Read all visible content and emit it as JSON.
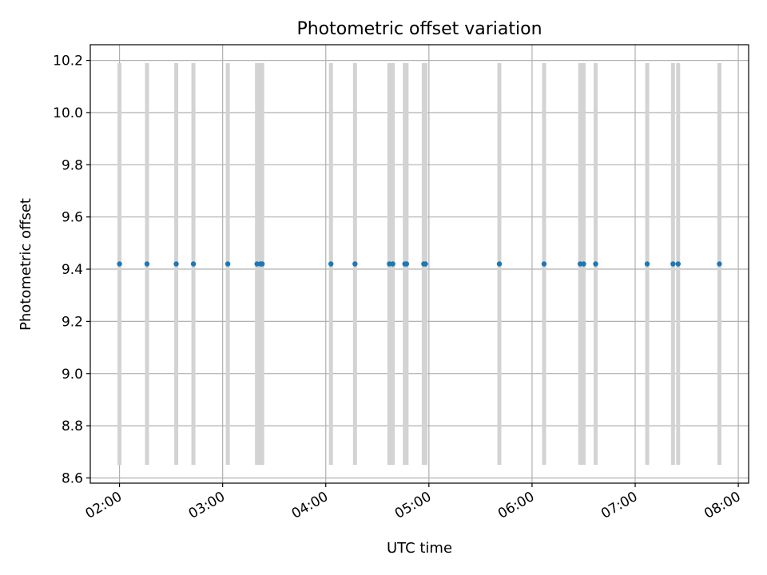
{
  "chart_data": {
    "type": "scatter",
    "title": "Photometric offset variation",
    "xlabel": "UTC time",
    "ylabel": "Photometric offset",
    "x_tick_labels": [
      "02:00",
      "03:00",
      "04:00",
      "05:00",
      "06:00",
      "07:00",
      "08:00"
    ],
    "y_tick_labels": [
      "8.6",
      "8.8",
      "9.0",
      "9.2",
      "9.4",
      "9.6",
      "9.8",
      "10.0",
      "10.2"
    ],
    "xlim": [
      "01:43",
      "08:06"
    ],
    "ylim": [
      8.58,
      10.26
    ],
    "grid": true,
    "error_bars": {
      "color": "#d3d3d3",
      "lower": 8.65,
      "upper": 10.19
    },
    "series": [
      {
        "color": "#1f77b4",
        "x": [
          "02:00",
          "02:16",
          "02:33",
          "02:43",
          "03:03",
          "03:20",
          "03:22",
          "03:23",
          "04:03",
          "04:17",
          "04:37",
          "04:39",
          "04:46",
          "04:47",
          "04:57",
          "04:58",
          "05:41",
          "06:07",
          "06:28",
          "06:30",
          "06:37",
          "07:07",
          "07:22",
          "07:25",
          "07:49"
        ],
        "y": [
          9.42,
          9.42,
          9.42,
          9.42,
          9.42,
          9.42,
          9.42,
          9.42,
          9.42,
          9.42,
          9.42,
          9.42,
          9.42,
          9.42,
          9.42,
          9.42,
          9.42,
          9.42,
          9.42,
          9.42,
          9.42,
          9.42,
          9.42,
          9.42,
          9.42
        ]
      }
    ]
  }
}
